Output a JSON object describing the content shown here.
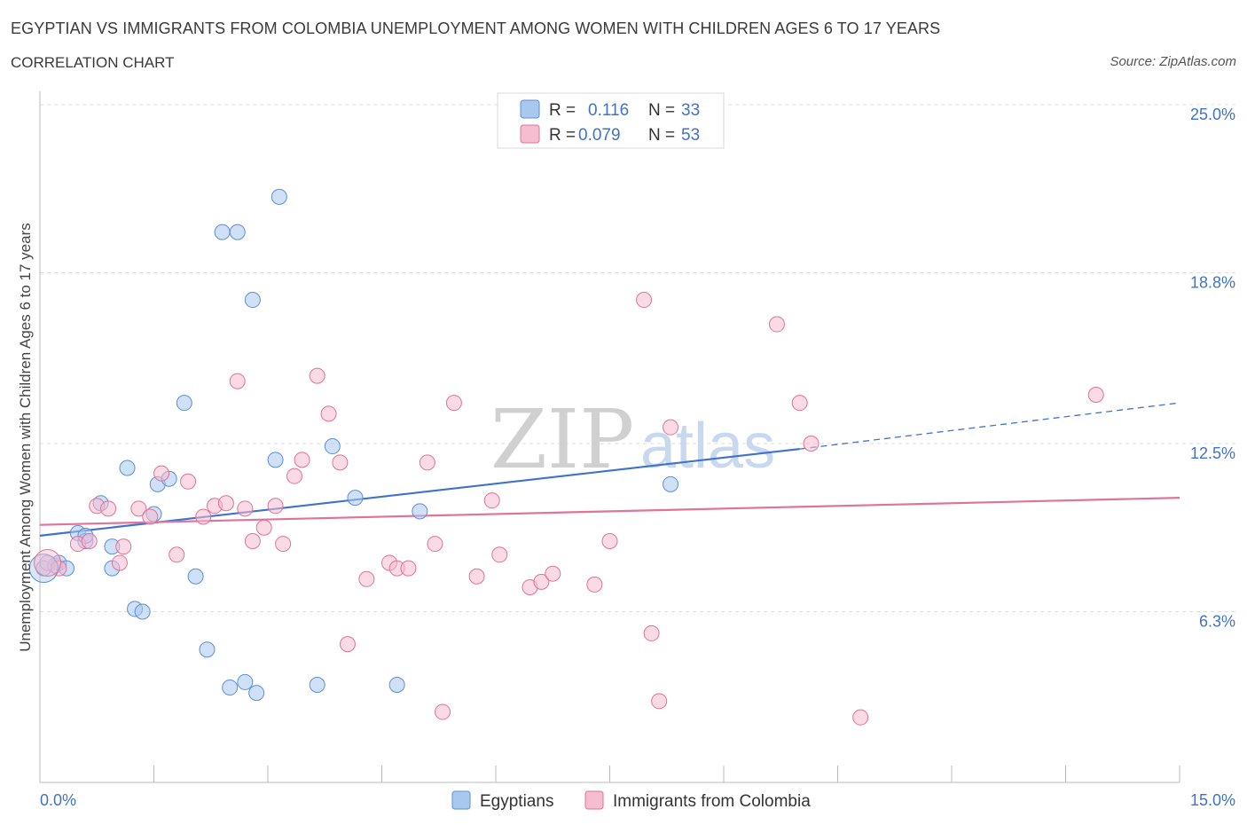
{
  "title": "EGYPTIAN VS IMMIGRANTS FROM COLOMBIA UNEMPLOYMENT AMONG WOMEN WITH CHILDREN AGES 6 TO 17 YEARS",
  "subtitle": "CORRELATION CHART",
  "source": "Source: ZipAtlas.com",
  "watermark": {
    "zip": "ZIP",
    "atlas": "atlas"
  },
  "legend": {
    "r_label": "R =",
    "n_label": "N =",
    "series": [
      {
        "name": "Egyptians",
        "r": "0.116",
        "n": "33",
        "color": "#a9c8f0",
        "stroke": "#5b8fd6"
      },
      {
        "name": "Immigrants from Colombia",
        "r": "0.079",
        "n": "53",
        "color": "#f6bccf",
        "stroke": "#e07399"
      }
    ]
  },
  "chart_data": {
    "type": "scatter",
    "title": "EGYPTIAN VS IMMIGRANTS FROM COLOMBIA UNEMPLOYMENT AMONG WOMEN WITH CHILDREN AGES 6 TO 17 YEARS",
    "ylabel": "Unemployment Among Women with Children Ages 6 to 17 years",
    "xlabel": "",
    "xlim": [
      0,
      15
    ],
    "ylim": [
      0,
      25
    ],
    "x_tick_labels": [
      "0.0%",
      "15.0%"
    ],
    "y_tick_values": [
      6.3,
      12.5,
      18.8,
      25.0
    ],
    "y_tick_labels": [
      "6.3%",
      "12.5%",
      "18.8%",
      "25.0%"
    ],
    "grid": true,
    "legend_position": "top-center",
    "series": [
      {
        "name": "Egyptians",
        "color": "#5b8fd6",
        "fill": "#a9c8f0",
        "trend": {
          "x": [
            0,
            10.0
          ],
          "y": [
            9.1,
            12.3
          ],
          "dashed_x": [
            10.0,
            15.0
          ],
          "dashed_y": [
            12.3,
            14.0
          ]
        },
        "points": [
          [
            0.05,
            7.9
          ],
          [
            0.2,
            8.0
          ],
          [
            0.25,
            8.1
          ],
          [
            0.35,
            7.9
          ],
          [
            0.5,
            9.2
          ],
          [
            0.6,
            8.9
          ],
          [
            0.8,
            10.3
          ],
          [
            0.95,
            8.7
          ],
          [
            0.95,
            7.9
          ],
          [
            1.15,
            11.6
          ],
          [
            1.25,
            6.4
          ],
          [
            1.35,
            6.3
          ],
          [
            1.55,
            11.0
          ],
          [
            1.7,
            11.2
          ],
          [
            1.9,
            14.0
          ],
          [
            2.05,
            7.6
          ],
          [
            2.2,
            4.9
          ],
          [
            2.5,
            3.5
          ],
          [
            2.4,
            20.3
          ],
          [
            2.6,
            20.3
          ],
          [
            2.7,
            3.7
          ],
          [
            2.85,
            3.3
          ],
          [
            2.8,
            17.8
          ],
          [
            3.1,
            11.9
          ],
          [
            3.15,
            21.6
          ],
          [
            3.65,
            3.6
          ],
          [
            3.85,
            12.4
          ],
          [
            4.15,
            10.5
          ],
          [
            4.7,
            3.6
          ],
          [
            5.0,
            10.0
          ],
          [
            8.3,
            11.0
          ],
          [
            0.6,
            9.1
          ],
          [
            1.5,
            9.9
          ]
        ]
      },
      {
        "name": "Immigrants from Colombia",
        "color": "#e07399",
        "fill": "#f6bccf",
        "trend": {
          "x": [
            0,
            15.0
          ],
          "y": [
            9.5,
            10.5
          ]
        },
        "points": [
          [
            0.1,
            8.1
          ],
          [
            0.25,
            7.9
          ],
          [
            0.5,
            8.8
          ],
          [
            0.65,
            8.9
          ],
          [
            0.75,
            10.2
          ],
          [
            0.9,
            10.1
          ],
          [
            1.05,
            8.1
          ],
          [
            1.1,
            8.7
          ],
          [
            1.3,
            10.1
          ],
          [
            1.45,
            9.8
          ],
          [
            1.6,
            11.4
          ],
          [
            1.8,
            8.4
          ],
          [
            1.95,
            11.1
          ],
          [
            2.15,
            9.8
          ],
          [
            2.3,
            10.2
          ],
          [
            2.45,
            10.3
          ],
          [
            2.6,
            14.8
          ],
          [
            2.7,
            10.1
          ],
          [
            2.8,
            8.9
          ],
          [
            2.95,
            9.4
          ],
          [
            3.1,
            10.2
          ],
          [
            3.2,
            8.8
          ],
          [
            3.35,
            11.3
          ],
          [
            3.45,
            11.9
          ],
          [
            3.65,
            15.0
          ],
          [
            3.8,
            13.6
          ],
          [
            3.95,
            11.8
          ],
          [
            4.05,
            5.1
          ],
          [
            4.3,
            7.5
          ],
          [
            4.6,
            8.1
          ],
          [
            4.7,
            7.9
          ],
          [
            4.85,
            7.9
          ],
          [
            5.1,
            11.8
          ],
          [
            5.2,
            8.8
          ],
          [
            5.3,
            2.6
          ],
          [
            5.45,
            14.0
          ],
          [
            5.75,
            7.6
          ],
          [
            5.95,
            10.4
          ],
          [
            6.05,
            8.4
          ],
          [
            6.45,
            7.2
          ],
          [
            6.6,
            7.4
          ],
          [
            6.75,
            7.7
          ],
          [
            7.3,
            7.3
          ],
          [
            7.5,
            8.9
          ],
          [
            7.95,
            17.8
          ],
          [
            8.05,
            5.5
          ],
          [
            8.15,
            3.0
          ],
          [
            8.3,
            13.1
          ],
          [
            9.7,
            16.9
          ],
          [
            10.0,
            14.0
          ],
          [
            10.15,
            12.5
          ],
          [
            10.8,
            2.4
          ],
          [
            13.9,
            14.3
          ]
        ]
      }
    ]
  }
}
